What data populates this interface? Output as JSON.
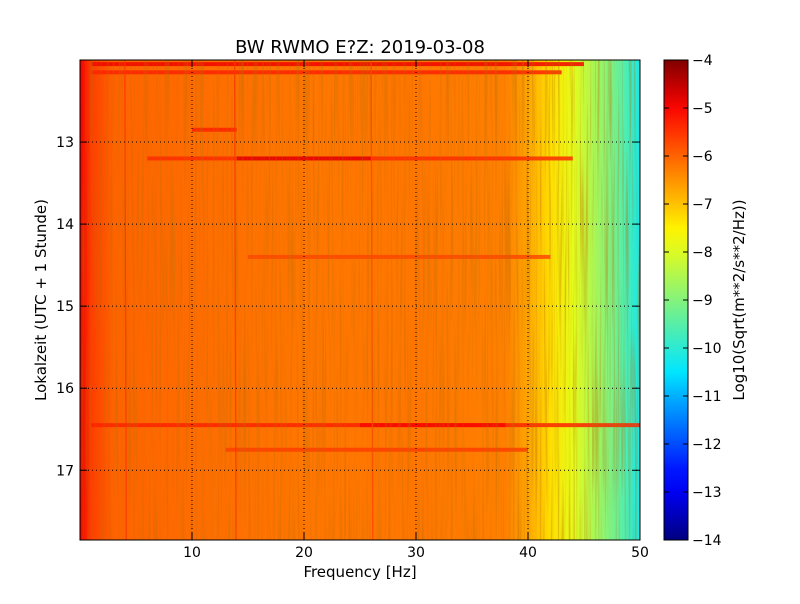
{
  "chart_data": {
    "type": "heatmap",
    "title": "BW RWMO E?Z: 2019-03-08",
    "xlabel": "Frequency [Hz]",
    "ylabel": "Lokalzeit (UTC + 1 Stunde)",
    "xlim": [
      0,
      50
    ],
    "ylim": [
      17.85,
      12.0
    ],
    "x_ticks": [
      10,
      20,
      30,
      40,
      50
    ],
    "y_ticks": [
      13,
      14,
      15,
      16,
      17
    ],
    "grid": true,
    "colorbar": {
      "label": "Log10(Sqrt(m**2/s**2/Hz))",
      "range": [
        -14,
        -4
      ],
      "ticks": [
        -4,
        -5,
        -6,
        -7,
        -8,
        -9,
        -10,
        -11,
        -12,
        -13,
        -14
      ],
      "colormap": "jet"
    },
    "background_level_profile": {
      "frequency_hz": [
        0,
        1,
        3,
        10,
        20,
        30,
        38,
        40,
        42,
        44,
        46,
        48,
        50
      ],
      "log10_amplitude": [
        -4.9,
        -5.6,
        -6.0,
        -6.1,
        -6.2,
        -6.2,
        -6.3,
        -6.7,
        -7.3,
        -7.9,
        -8.6,
        -9.3,
        -10.2
      ]
    },
    "horizontal_bands": [
      {
        "time": 12.05,
        "f_from": 1,
        "f_to": 45,
        "log10_amplitude": -4.9
      },
      {
        "time": 12.15,
        "f_from": 1,
        "f_to": 43,
        "log10_amplitude": -5.3
      },
      {
        "time": 12.85,
        "f_from": 10,
        "f_to": 14,
        "log10_amplitude": -5.3
      },
      {
        "time": 13.2,
        "f_from": 6,
        "f_to": 44,
        "log10_amplitude": -5.4
      },
      {
        "time": 13.2,
        "f_from": 14,
        "f_to": 26,
        "log10_amplitude": -4.8
      },
      {
        "time": 14.4,
        "f_from": 15,
        "f_to": 42,
        "log10_amplitude": -5.7
      },
      {
        "time": 16.45,
        "f_from": 1,
        "f_to": 50,
        "log10_amplitude": -5.3
      },
      {
        "time": 16.45,
        "f_from": 25,
        "f_to": 38,
        "log10_amplitude": -5.0
      },
      {
        "time": 16.75,
        "f_from": 13,
        "f_to": 40,
        "log10_amplitude": -5.6
      }
    ],
    "vertical_lines": [
      {
        "frequency": 4.0,
        "log10_amplitude": -5.5
      },
      {
        "frequency": 13.8,
        "log10_amplitude": -5.5
      },
      {
        "frequency": 26.0,
        "log10_amplitude": -5.7
      }
    ]
  }
}
